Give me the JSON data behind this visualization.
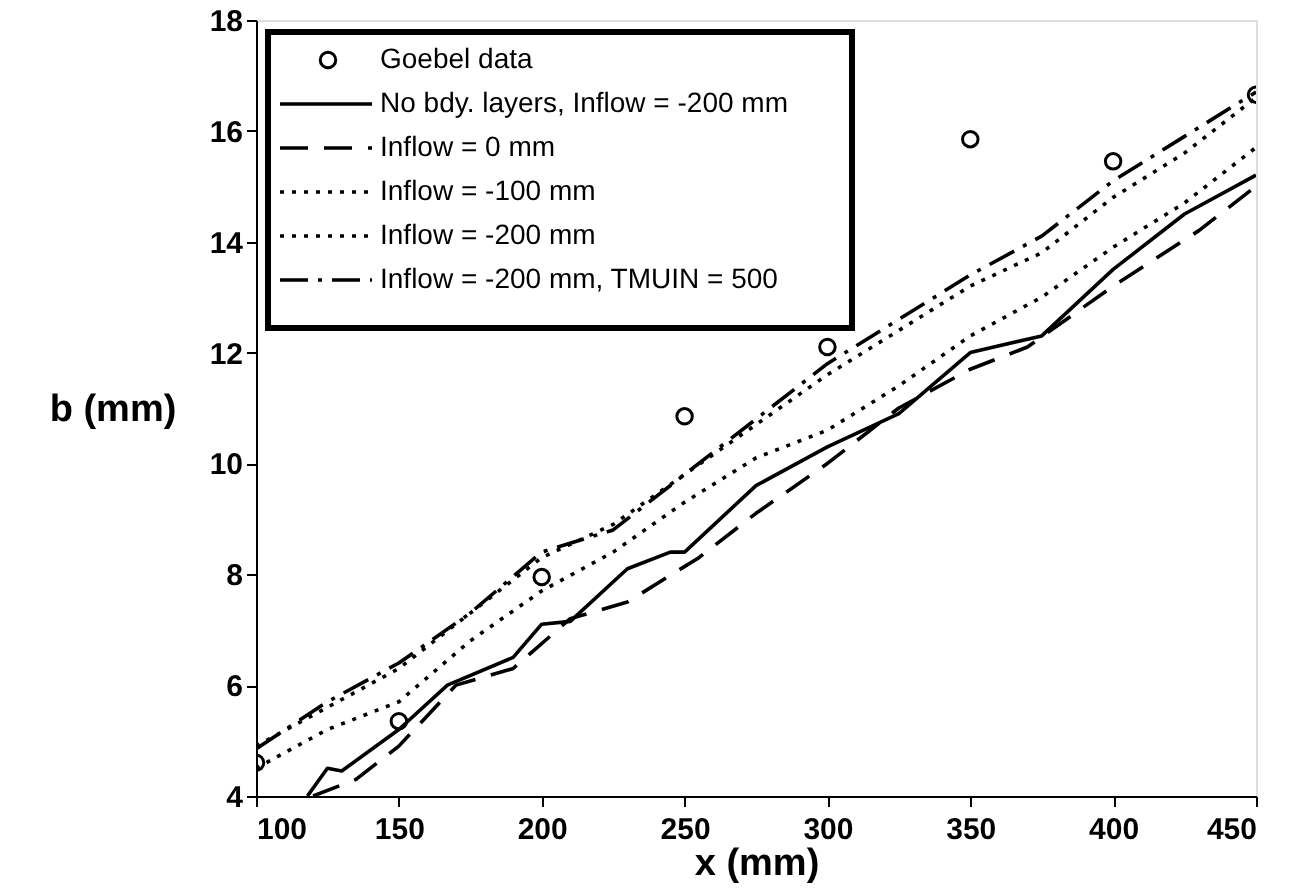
{
  "chart_data": {
    "type": "line",
    "xlabel": "x (mm)",
    "ylabel": "b (mm)",
    "xlim": [
      100,
      450
    ],
    "ylim": [
      4,
      18
    ],
    "xticks": [
      100,
      150,
      200,
      250,
      300,
      350,
      400,
      450
    ],
    "yticks": [
      4,
      6,
      8,
      10,
      12,
      14,
      16,
      18
    ],
    "grid": false,
    "legend": "top left",
    "series": [
      {
        "name": "Goebel data",
        "type": "scatter",
        "marker": "circle",
        "color": "#000000",
        "x": [
          100,
          150,
          200,
          250,
          300,
          350,
          400,
          450
        ],
        "values": [
          4.6,
          5.35,
          7.95,
          10.85,
          12.1,
          15.85,
          15.45,
          16.65
        ]
      },
      {
        "name": "No bdy. layers, Inflow = -200 mm",
        "line_style": "solid",
        "color": "#000000",
        "x": [
          118,
          125,
          130,
          150,
          167,
          190,
          200,
          210,
          230,
          245,
          250,
          275,
          300,
          325,
          350,
          375,
          400,
          425,
          450
        ],
        "values": [
          4.0,
          4.5,
          4.45,
          5.2,
          6.0,
          6.5,
          7.1,
          7.15,
          8.1,
          8.4,
          8.4,
          9.6,
          10.3,
          10.9,
          12.0,
          12.3,
          13.5,
          14.5,
          15.2
        ]
      },
      {
        "name": "Inflow = 0 mm",
        "line_style": "dashed",
        "color": "#000000",
        "x": [
          120,
          135,
          150,
          170,
          190,
          210,
          230,
          255,
          275,
          300,
          325,
          350,
          370,
          400,
          430,
          450
        ],
        "values": [
          4.0,
          4.3,
          4.9,
          6.0,
          6.3,
          7.2,
          7.5,
          8.3,
          9.1,
          10.0,
          11.0,
          11.7,
          12.1,
          13.2,
          14.2,
          15.0
        ]
      },
      {
        "name": "Inflow = -100 mm",
        "line_style": "dotted",
        "color": "#000000",
        "x": [
          100,
          125,
          150,
          175,
          200,
          225,
          250,
          275,
          300,
          325,
          350,
          375,
          400,
          425,
          450
        ],
        "values": [
          4.5,
          5.2,
          5.7,
          6.8,
          7.7,
          8.4,
          9.3,
          10.1,
          10.6,
          11.4,
          12.3,
          13.0,
          13.9,
          14.7,
          15.7
        ]
      },
      {
        "name": "Inflow = -200 mm",
        "line_style": "dotted",
        "color": "#000000",
        "x": [
          100,
          125,
          150,
          175,
          200,
          225,
          250,
          275,
          300,
          325,
          350,
          375,
          400,
          425,
          450
        ],
        "values": [
          4.9,
          5.6,
          6.3,
          7.3,
          8.3,
          8.9,
          9.8,
          10.7,
          11.6,
          12.4,
          13.2,
          13.8,
          14.8,
          15.6,
          16.6
        ]
      },
      {
        "name": "Inflow = -200 mm, TMUIN = 500",
        "line_style": "dashdot",
        "color": "#000000",
        "x": [
          100,
          125,
          150,
          175,
          200,
          225,
          250,
          275,
          300,
          325,
          350,
          375,
          400,
          425,
          450
        ],
        "values": [
          4.85,
          5.7,
          6.4,
          7.3,
          8.4,
          8.8,
          9.8,
          10.8,
          11.8,
          12.6,
          13.4,
          14.1,
          15.1,
          15.9,
          16.7
        ]
      }
    ]
  }
}
